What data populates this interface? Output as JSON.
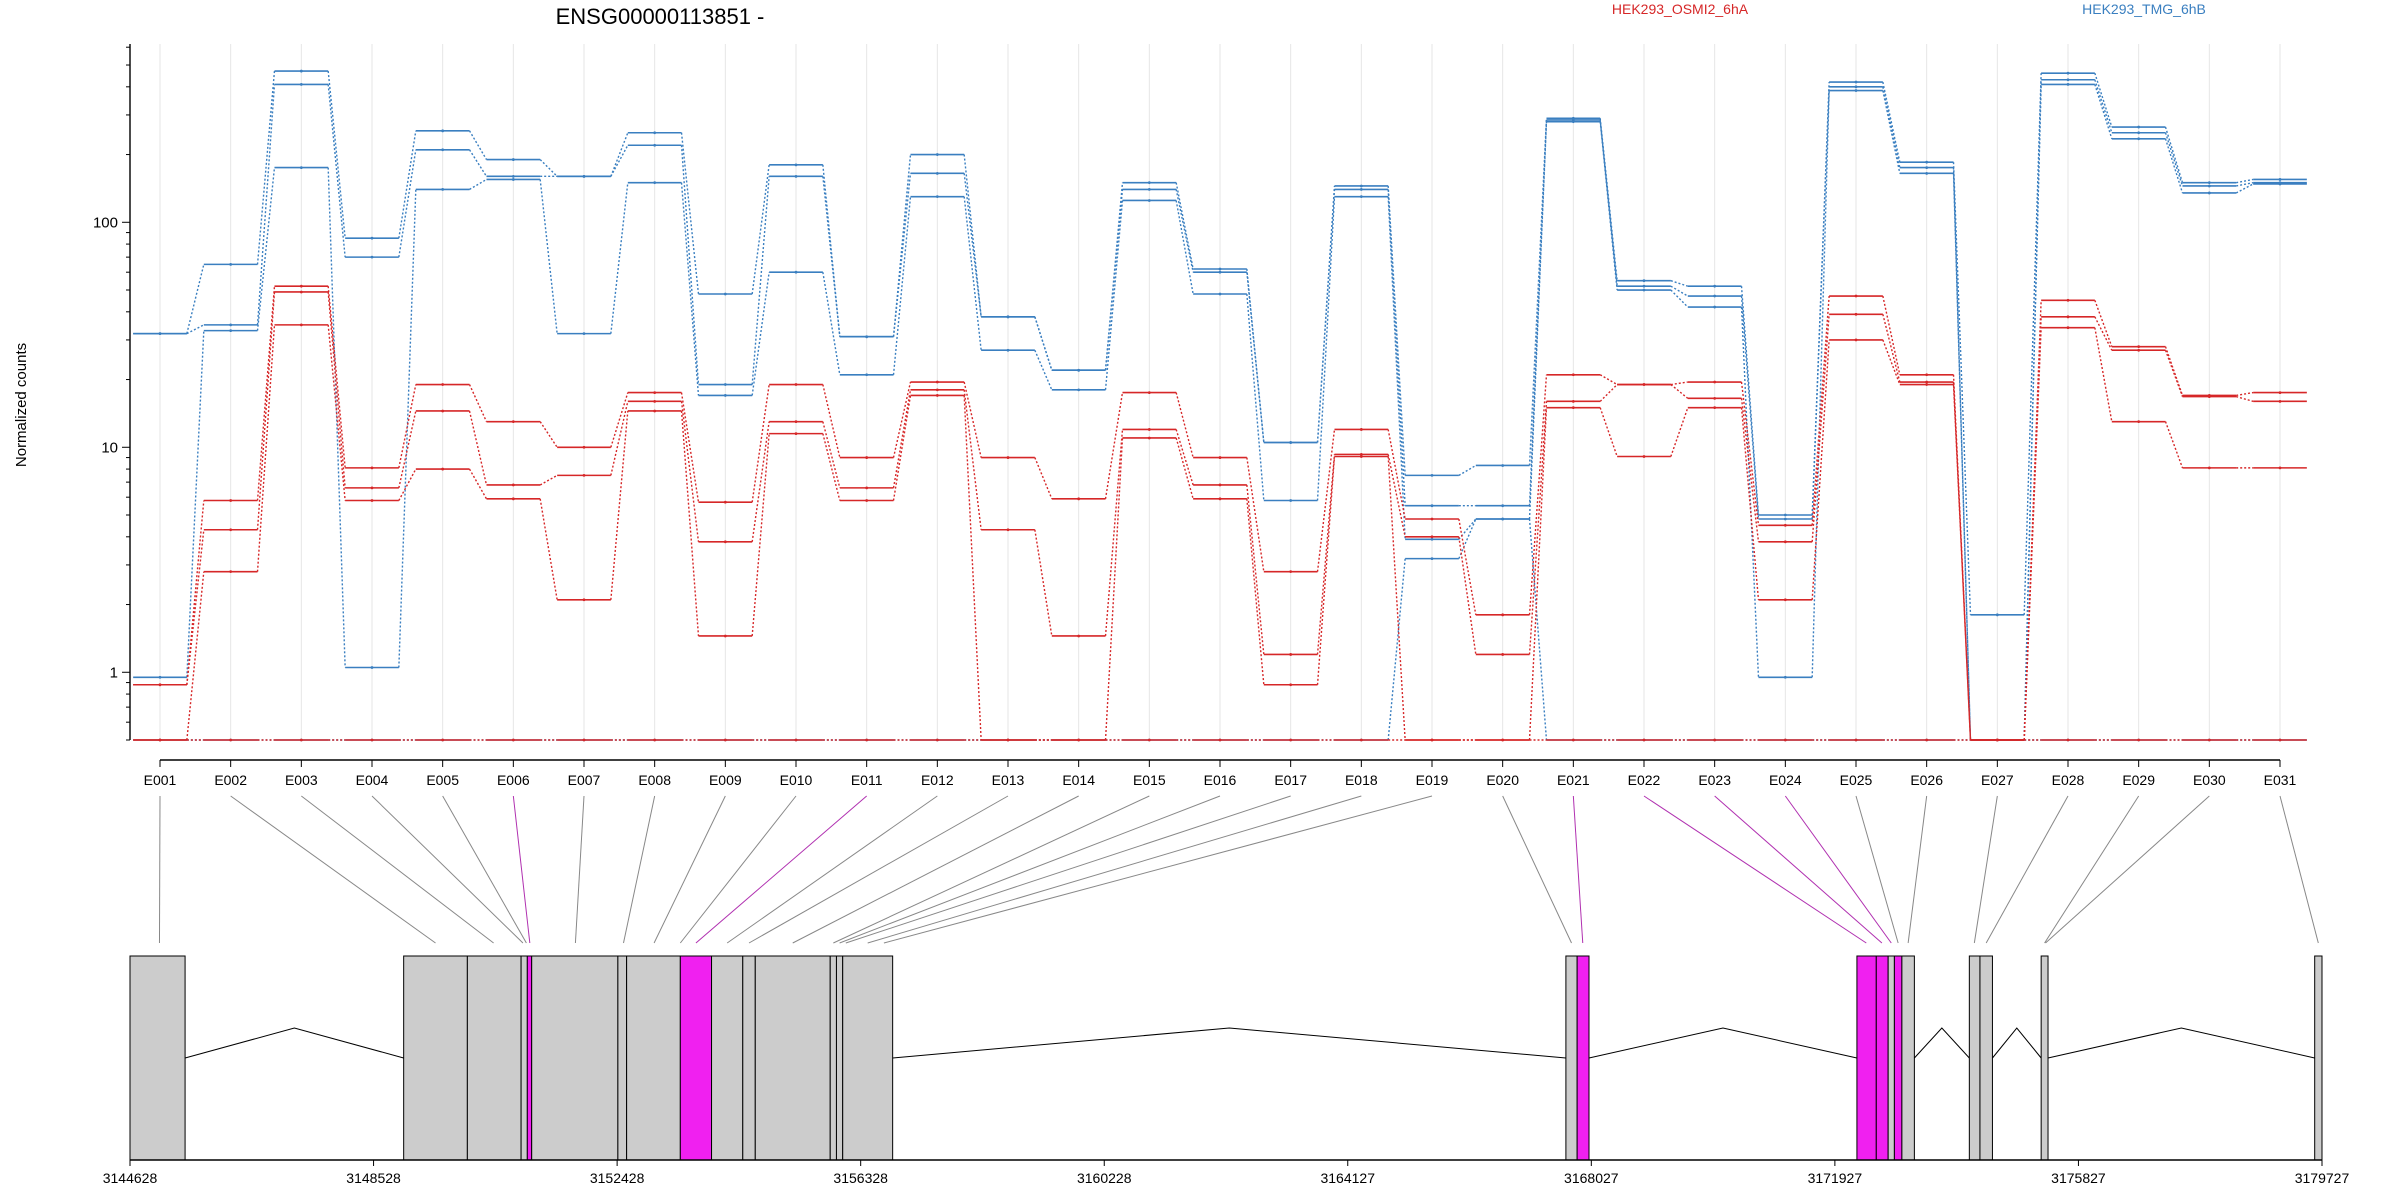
{
  "chart_data": [
    {
      "type": "line",
      "title": "ENSG00000113851 -",
      "ylabel": "Normalized counts",
      "yscale": "log",
      "ylim": [
        0.5,
        620
      ],
      "yticks": [
        1,
        10,
        100
      ],
      "ytick_labels": [
        "1",
        "10",
        "100"
      ],
      "categories": [
        "E001",
        "E002",
        "E003",
        "E004",
        "E005",
        "E006",
        "E007",
        "E008",
        "E009",
        "E010",
        "E011",
        "E012",
        "E013",
        "E014",
        "E015",
        "E016",
        "E017",
        "E018",
        "E019",
        "E020",
        "E021",
        "E022",
        "E023",
        "E024",
        "E025",
        "E026",
        "E027",
        "E028",
        "E029",
        "E030",
        "E031"
      ],
      "legend": [
        {
          "label": "HEK293_OSMI2_6hA",
          "color": "#d62728"
        },
        {
          "label": "HEK293_TMG_6hB",
          "color": "#3a7fc0"
        }
      ],
      "colors": {
        "osmi": "#d62728",
        "tmg": "#3a7fc0"
      },
      "series": [
        {
          "group": "tmg",
          "values": [
            32,
            65,
            470,
            85,
            255,
            190,
            160,
            250,
            48,
            180,
            31,
            200,
            38,
            22,
            150,
            62,
            10.5,
            145,
            7.5,
            8.3,
            290,
            55,
            52,
            5,
            420,
            185,
            1.8,
            460,
            265,
            150,
            155
          ]
        },
        {
          "group": "tmg",
          "values": [
            32,
            35,
            410,
            70,
            210,
            160,
            160,
            220,
            19,
            160,
            31,
            165,
            38,
            22,
            140,
            60,
            10.5,
            140,
            5.5,
            5.5,
            285,
            52,
            47,
            4.8,
            400,
            175,
            0.5,
            430,
            250,
            145,
            150
          ]
        },
        {
          "group": "tmg",
          "values": [
            0.95,
            33,
            175,
            1.05,
            140,
            155,
            32,
            150,
            17,
            60,
            21,
            130,
            27,
            18,
            125,
            48,
            5.8,
            130,
            3.9,
            4.8,
            280,
            50,
            42,
            0.95,
            385,
            165,
            0.5,
            410,
            235,
            135,
            148
          ]
        },
        {
          "group": "tmg",
          "values": [
            0.5,
            0.5,
            0.5,
            0.5,
            0.5,
            0.5,
            0.5,
            0.5,
            0.5,
            0.5,
            0.5,
            0.5,
            0.5,
            0.5,
            0.5,
            0.5,
            0.5,
            0.5,
            3.2,
            4.8,
            0.5,
            0.5,
            0.5,
            0.5,
            0.5,
            0.5,
            0.5,
            0.5,
            0.5,
            0.5,
            0.5
          ]
        },
        {
          "group": "osmi",
          "values": [
            0.88,
            5.8,
            52,
            8.1,
            19,
            13,
            10,
            17.5,
            5.7,
            19,
            9,
            19.5,
            9,
            5.9,
            17.5,
            9,
            2.8,
            12,
            4.8,
            1.8,
            21,
            19,
            19.5,
            4.5,
            47,
            21,
            0.5,
            45,
            28,
            17,
            17.5
          ]
        },
        {
          "group": "osmi",
          "values": [
            0.88,
            4.3,
            49,
            6.6,
            14.5,
            6.8,
            7.5,
            16,
            3.8,
            13,
            6.6,
            18,
            4.3,
            1.45,
            12,
            6.8,
            1.2,
            9.3,
            4,
            1.2,
            16,
            19,
            16.5,
            3.8,
            39,
            19.5,
            0.5,
            38,
            27,
            16.8,
            16
          ]
        },
        {
          "group": "osmi",
          "values": [
            0.5,
            2.8,
            35,
            5.8,
            8,
            5.9,
            2.1,
            14.5,
            1.45,
            11.5,
            5.8,
            17,
            0.5,
            0.5,
            11,
            5.9,
            0.88,
            9.1,
            0.5,
            0.5,
            15,
            9.1,
            15,
            2.1,
            30,
            19,
            0.5,
            34,
            13,
            8.1,
            8.1
          ]
        },
        {
          "group": "osmi",
          "values": [
            0.5,
            0.5,
            0.5,
            0.5,
            0.5,
            0.5,
            0.5,
            0.5,
            0.5,
            0.5,
            0.5,
            0.5,
            0.5,
            0.5,
            0.5,
            0.5,
            0.5,
            0.5,
            0.5,
            0.5,
            0.5,
            0.5,
            0.5,
            0.5,
            0.5,
            0.5,
            0.5,
            0.5,
            0.5,
            0.5,
            0.5
          ]
        }
      ]
    },
    {
      "type": "gene-model",
      "xlim": [
        3144628,
        3179727
      ],
      "xticks": [
        3144628,
        3148528,
        3152428,
        3156328,
        3160228,
        3164127,
        3168027,
        3171927,
        3175827,
        3179727
      ],
      "xtick_labels": [
        "3144628",
        "3148528",
        "3152428",
        "3156328",
        "3160228",
        "3164127",
        "3168027",
        "3171927",
        "3175827",
        "3179727"
      ],
      "colors": {
        "exon": "#cccccc",
        "highlight": "#f020f0"
      },
      "exons": [
        [
          3144628,
          3145510,
          "exon"
        ],
        [
          3149010,
          3150030,
          "exon"
        ],
        [
          3150030,
          3150890,
          "exon"
        ],
        [
          3150890,
          3150990,
          "exon"
        ],
        [
          3150990,
          3151060,
          "highlight"
        ],
        [
          3151060,
          3152440,
          "exon"
        ],
        [
          3152440,
          3152580,
          "exon"
        ],
        [
          3152580,
          3153440,
          "exon"
        ],
        [
          3153440,
          3153940,
          "highlight"
        ],
        [
          3153940,
          3154440,
          "exon"
        ],
        [
          3154440,
          3154640,
          "exon"
        ],
        [
          3154640,
          3155840,
          "exon"
        ],
        [
          3155840,
          3155940,
          "exon"
        ],
        [
          3155940,
          3156040,
          "exon"
        ],
        [
          3156040,
          3156840,
          "exon"
        ],
        [
          3167620,
          3167800,
          "exon"
        ],
        [
          3167800,
          3167990,
          "highlight"
        ],
        [
          3172280,
          3172590,
          "highlight"
        ],
        [
          3172590,
          3172780,
          "highlight"
        ],
        [
          3172780,
          3172880,
          "exon"
        ],
        [
          3172880,
          3173000,
          "highlight"
        ],
        [
          3173000,
          3173200,
          "exon"
        ],
        [
          3174080,
          3174250,
          "exon"
        ],
        [
          3174250,
          3174450,
          "exon"
        ],
        [
          3175230,
          3175340,
          "exon"
        ],
        [
          3179610,
          3179727,
          "exon"
        ]
      ],
      "introns": [
        [
          3145510,
          3149010
        ],
        [
          3156840,
          3167620
        ],
        [
          3167990,
          3172280
        ],
        [
          3173200,
          3174080
        ],
        [
          3174450,
          3175230
        ],
        [
          3175340,
          3179610
        ]
      ],
      "bin_links": [
        {
          "bin": "E001",
          "pos": 3145100,
          "highlight": false
        },
        {
          "bin": "E002",
          "pos": 3149520,
          "highlight": false
        },
        {
          "bin": "E003",
          "pos": 3150450,
          "highlight": false
        },
        {
          "bin": "E004",
          "pos": 3150920,
          "highlight": false
        },
        {
          "bin": "E005",
          "pos": 3150975,
          "highlight": false
        },
        {
          "bin": "E006",
          "pos": 3151030,
          "highlight": true
        },
        {
          "bin": "E007",
          "pos": 3151760,
          "highlight": false
        },
        {
          "bin": "E008",
          "pos": 3152530,
          "highlight": false
        },
        {
          "bin": "E009",
          "pos": 3153020,
          "highlight": false
        },
        {
          "bin": "E010",
          "pos": 3153440,
          "highlight": false
        },
        {
          "bin": "E011",
          "pos": 3153690,
          "highlight": true
        },
        {
          "bin": "E012",
          "pos": 3154190,
          "highlight": false
        },
        {
          "bin": "E013",
          "pos": 3154540,
          "highlight": false
        },
        {
          "bin": "E014",
          "pos": 3155240,
          "highlight": false
        },
        {
          "bin": "E015",
          "pos": 3155890,
          "highlight": false
        },
        {
          "bin": "E016",
          "pos": 3155990,
          "highlight": false
        },
        {
          "bin": "E017",
          "pos": 3156090,
          "highlight": false
        },
        {
          "bin": "E018",
          "pos": 3156440,
          "highlight": false
        },
        {
          "bin": "E019",
          "pos": 3156700,
          "highlight": false
        },
        {
          "bin": "E020",
          "pos": 3167710,
          "highlight": false
        },
        {
          "bin": "E021",
          "pos": 3167890,
          "highlight": true
        },
        {
          "bin": "E022",
          "pos": 3172430,
          "highlight": true
        },
        {
          "bin": "E023",
          "pos": 3172680,
          "highlight": true
        },
        {
          "bin": "E024",
          "pos": 3172830,
          "highlight": true
        },
        {
          "bin": "E025",
          "pos": 3172940,
          "highlight": false
        },
        {
          "bin": "E026",
          "pos": 3173100,
          "highlight": false
        },
        {
          "bin": "E027",
          "pos": 3174160,
          "highlight": false
        },
        {
          "bin": "E028",
          "pos": 3174350,
          "highlight": false
        },
        {
          "bin": "E029",
          "pos": 3175285,
          "highlight": false
        },
        {
          "bin": "E030",
          "pos": 3175300,
          "highlight": false
        },
        {
          "bin": "E031",
          "pos": 3179668,
          "highlight": false
        }
      ]
    }
  ]
}
